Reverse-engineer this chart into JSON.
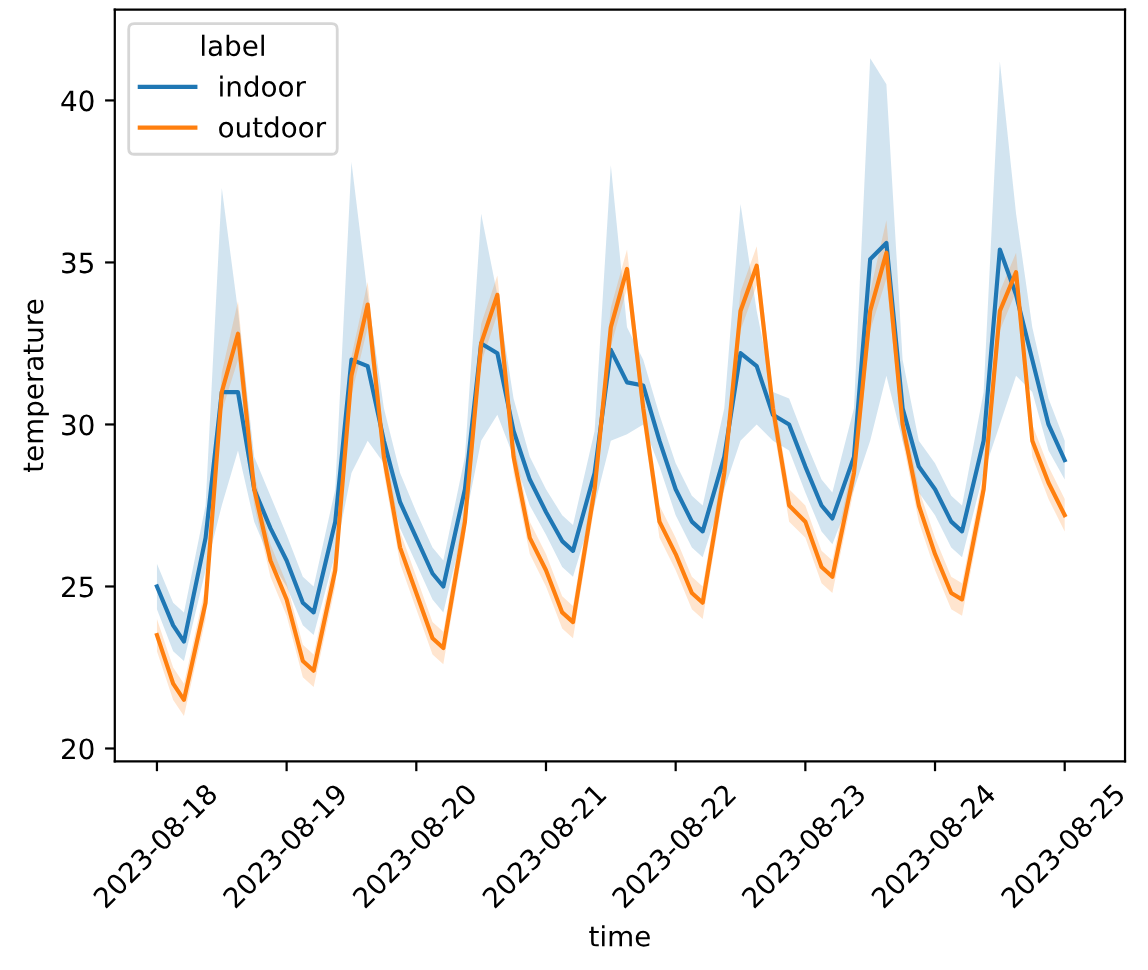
{
  "chart_data": {
    "type": "line",
    "xlabel": "time",
    "ylabel": "temperature",
    "legend_title": "label",
    "legend": "top left",
    "grid": false,
    "marker": "none",
    "line_style": "solid",
    "x": [
      "2023-08-18T00:00",
      "2023-08-18T03:00",
      "2023-08-18T05:00",
      "2023-08-18T09:00",
      "2023-08-18T12:00",
      "2023-08-18T15:00",
      "2023-08-18T18:00",
      "2023-08-18T21:00",
      "2023-08-19T00:00",
      "2023-08-19T03:00",
      "2023-08-19T05:00",
      "2023-08-19T09:00",
      "2023-08-19T12:00",
      "2023-08-19T15:00",
      "2023-08-19T18:00",
      "2023-08-19T21:00",
      "2023-08-20T00:00",
      "2023-08-20T03:00",
      "2023-08-20T05:00",
      "2023-08-20T09:00",
      "2023-08-20T12:00",
      "2023-08-20T15:00",
      "2023-08-20T18:00",
      "2023-08-20T21:00",
      "2023-08-21T00:00",
      "2023-08-21T03:00",
      "2023-08-21T05:00",
      "2023-08-21T09:00",
      "2023-08-21T12:00",
      "2023-08-21T15:00",
      "2023-08-21T18:00",
      "2023-08-21T21:00",
      "2023-08-22T00:00",
      "2023-08-22T03:00",
      "2023-08-22T05:00",
      "2023-08-22T09:00",
      "2023-08-22T12:00",
      "2023-08-22T15:00",
      "2023-08-22T18:00",
      "2023-08-22T21:00",
      "2023-08-23T00:00",
      "2023-08-23T03:00",
      "2023-08-23T05:00",
      "2023-08-23T09:00",
      "2023-08-23T12:00",
      "2023-08-23T15:00",
      "2023-08-23T18:00",
      "2023-08-23T21:00",
      "2023-08-24T00:00",
      "2023-08-24T03:00",
      "2023-08-24T05:00",
      "2023-08-24T09:00",
      "2023-08-24T12:00",
      "2023-08-24T15:00",
      "2023-08-24T18:00",
      "2023-08-24T21:00",
      "2023-08-25T00:00"
    ],
    "xlim": [
      "2023-08-17T16:12",
      "2023-08-25T11:10"
    ],
    "xticks": [
      "2023-08-18",
      "2023-08-19",
      "2023-08-20",
      "2023-08-21",
      "2023-08-22",
      "2023-08-23",
      "2023-08-24",
      "2023-08-25"
    ],
    "ylim": [
      19.6,
      42.8
    ],
    "yticks": [
      20,
      25,
      30,
      35,
      40
    ],
    "series": [
      {
        "name": "indoor",
        "color": "#1f77b4",
        "values": [
          25.0,
          23.8,
          23.3,
          26.5,
          31.0,
          31.0,
          28.0,
          26.8,
          25.8,
          24.5,
          24.2,
          27.0,
          32.0,
          31.8,
          29.5,
          27.6,
          26.5,
          25.4,
          25.0,
          28.0,
          32.5,
          32.2,
          29.8,
          28.3,
          27.3,
          26.4,
          26.1,
          28.5,
          32.3,
          31.3,
          31.2,
          29.5,
          28.0,
          27.0,
          26.7,
          29.0,
          32.2,
          31.8,
          30.3,
          30.0,
          28.7,
          27.5,
          27.1,
          29.0,
          35.1,
          35.6,
          30.5,
          28.7,
          28.0,
          27.0,
          26.7,
          29.5,
          35.4,
          34.0,
          32.0,
          30.0,
          28.9
        ],
        "upper": [
          25.7,
          24.5,
          24.2,
          27.5,
          37.3,
          33.5,
          29.0,
          27.8,
          26.6,
          25.3,
          25.0,
          28.0,
          38.1,
          34.0,
          30.5,
          28.5,
          27.3,
          26.2,
          25.8,
          29.0,
          36.5,
          34.0,
          30.8,
          29.0,
          28.0,
          27.2,
          26.9,
          29.8,
          38.0,
          33.0,
          32.0,
          30.3,
          28.8,
          27.8,
          27.5,
          30.5,
          36.8,
          33.5,
          31.0,
          30.8,
          29.5,
          28.3,
          27.9,
          30.5,
          41.3,
          40.5,
          32.0,
          29.5,
          28.8,
          27.8,
          27.5,
          31.0,
          41.2,
          36.5,
          33.0,
          30.8,
          29.5
        ],
        "lower": [
          24.3,
          23.0,
          22.7,
          25.5,
          27.5,
          29.2,
          27.0,
          25.8,
          25.0,
          23.8,
          23.5,
          26.0,
          28.5,
          29.5,
          28.8,
          26.8,
          25.7,
          24.6,
          24.2,
          27.0,
          29.5,
          30.3,
          29.0,
          27.5,
          26.6,
          25.6,
          25.3,
          27.5,
          29.5,
          29.7,
          30.0,
          28.7,
          27.2,
          26.2,
          25.9,
          28.0,
          29.5,
          30.0,
          29.5,
          29.2,
          27.9,
          26.7,
          26.3,
          28.0,
          29.5,
          31.5,
          29.5,
          27.9,
          27.2,
          26.2,
          25.9,
          28.5,
          30.0,
          31.5,
          31.0,
          29.2,
          28.3
        ]
      },
      {
        "name": "outdoor",
        "color": "#ff7f0e",
        "values": [
          23.5,
          22.0,
          21.5,
          24.5,
          31.0,
          32.8,
          28.0,
          25.8,
          24.6,
          22.7,
          22.4,
          25.5,
          31.5,
          33.7,
          29.0,
          26.2,
          24.8,
          23.4,
          23.1,
          27.0,
          32.5,
          34.0,
          29.0,
          26.5,
          25.5,
          24.2,
          23.9,
          28.0,
          33.0,
          34.8,
          30.5,
          27.0,
          26.0,
          24.8,
          24.5,
          28.5,
          33.5,
          34.9,
          30.5,
          27.5,
          27.0,
          25.6,
          25.3,
          28.5,
          33.5,
          35.3,
          30.0,
          27.5,
          26.0,
          24.8,
          24.6,
          28.0,
          33.5,
          34.7,
          29.5,
          28.2,
          27.2
        ],
        "upper": [
          24.0,
          22.5,
          22.0,
          25.0,
          31.6,
          33.8,
          28.5,
          26.3,
          25.1,
          23.2,
          22.9,
          26.0,
          32.1,
          34.4,
          29.5,
          26.7,
          25.3,
          23.9,
          23.6,
          27.5,
          33.1,
          34.6,
          29.5,
          27.0,
          26.0,
          24.7,
          24.4,
          28.5,
          33.6,
          35.4,
          31.0,
          27.5,
          26.5,
          25.3,
          25.0,
          29.0,
          34.1,
          35.5,
          31.0,
          28.0,
          27.5,
          26.1,
          25.8,
          29.0,
          34.1,
          36.3,
          30.5,
          28.0,
          26.5,
          25.3,
          25.1,
          28.5,
          34.1,
          35.3,
          30.0,
          28.7,
          27.7
        ],
        "lower": [
          23.0,
          21.5,
          21.0,
          24.0,
          30.4,
          32.0,
          27.5,
          25.3,
          24.1,
          22.2,
          21.9,
          25.0,
          30.9,
          33.0,
          28.5,
          25.7,
          24.3,
          22.9,
          22.6,
          26.5,
          31.9,
          33.4,
          28.5,
          26.0,
          25.0,
          23.7,
          23.4,
          27.5,
          32.4,
          34.2,
          30.0,
          26.5,
          25.5,
          24.3,
          24.0,
          28.0,
          32.9,
          34.3,
          30.0,
          27.0,
          26.5,
          25.1,
          24.8,
          28.0,
          32.9,
          34.5,
          29.5,
          27.0,
          25.5,
          24.3,
          24.1,
          27.5,
          32.9,
          34.1,
          29.0,
          27.7,
          26.7
        ]
      }
    ]
  }
}
